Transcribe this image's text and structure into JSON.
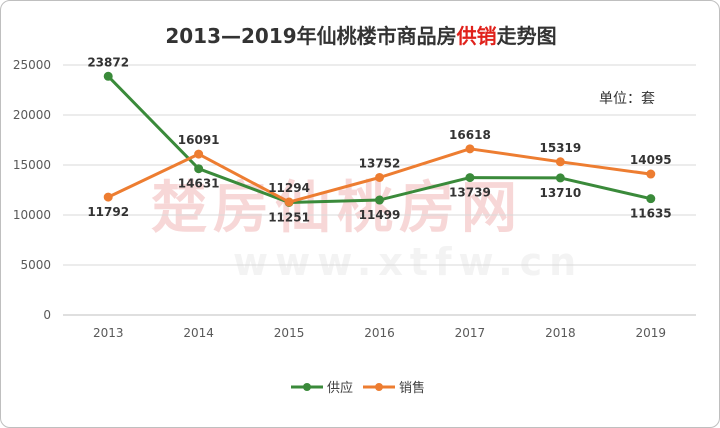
{
  "title": {
    "prefix": "2013—2019年仙桃楼市商品房",
    "highlight": "供销",
    "suffix": "走势图"
  },
  "unit_label": "单位：套",
  "watermark": {
    "main": "楚房仙桃房网",
    "url": "www.xtfw.cn"
  },
  "colors": {
    "supply": "#3a8a3a",
    "sales": "#ed7d31",
    "highlight": "#e0211b",
    "grid": "#d9d9d9"
  },
  "chart_data": {
    "type": "line",
    "categories": [
      "2013",
      "2014",
      "2015",
      "2016",
      "2017",
      "2018",
      "2019"
    ],
    "series": [
      {
        "name": "供应",
        "values": [
          23872,
          14631,
          11251,
          11499,
          13739,
          13710,
          11635
        ]
      },
      {
        "name": "销售",
        "values": [
          11792,
          16091,
          11294,
          13752,
          16618,
          15319,
          14095
        ]
      }
    ],
    "yticks": [
      "0",
      "5000",
      "10000",
      "15000",
      "20000",
      "25000"
    ],
    "ylim": [
      0,
      25000
    ],
    "grid": true,
    "legend_position": "bottom"
  }
}
